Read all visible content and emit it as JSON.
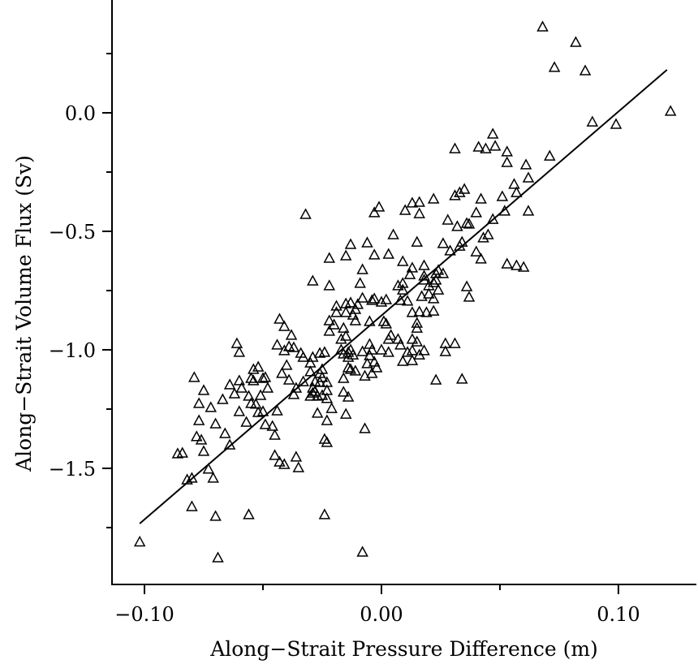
{
  "chart_data": {
    "type": "scatter",
    "title": "",
    "xlabel": "Along−Strait Pressure Difference (m)",
    "ylabel": "Along−Strait Volume Flux (Sv)",
    "xlim": [
      -0.1137,
      0.1329
    ],
    "ylim": [
      -1.99,
      0.476
    ],
    "grid": false,
    "legend": "none",
    "marker": "open-triangle",
    "x_ticks": [
      {
        "value": -0.1,
        "label": "−0.10"
      },
      {
        "value": 0.0,
        "label": "0.00"
      },
      {
        "value": 0.1,
        "label": "0.10"
      }
    ],
    "x_minor_ticks": [
      -0.05,
      0.05
    ],
    "y_ticks": [
      {
        "value": 0.0,
        "label": "0.0"
      },
      {
        "value": -0.5,
        "label": "−0.5"
      },
      {
        "value": -1.0,
        "label": "−1.0"
      },
      {
        "value": -1.5,
        "label": "−1.5"
      }
    ],
    "y_minor_ticks": [
      0.25,
      -0.25,
      -0.75,
      -1.25,
      -1.75
    ],
    "fit_line": {
      "x": [
        -0.102,
        0.1205
      ],
      "y": [
        -1.733,
        0.1815
      ]
    },
    "points": [
      [
        0.068,
        0.363
      ],
      [
        0.082,
        0.298
      ],
      [
        0.073,
        0.192
      ],
      [
        0.086,
        0.178
      ],
      [
        0.122,
        0.007
      ],
      [
        0.089,
        -0.038
      ],
      [
        0.099,
        -0.048
      ],
      [
        0.041,
        -0.144
      ],
      [
        0.031,
        -0.151
      ],
      [
        0.047,
        -0.089
      ],
      [
        0.048,
        -0.14
      ],
      [
        0.044,
        -0.151
      ],
      [
        0.053,
        -0.164
      ],
      [
        0.061,
        -0.219
      ],
      [
        0.053,
        -0.209
      ],
      [
        0.071,
        -0.182
      ],
      [
        0.062,
        -0.274
      ],
      [
        0.057,
        -0.336
      ],
      [
        0.056,
        -0.301
      ],
      [
        0.035,
        -0.322
      ],
      [
        0.033,
        -0.336
      ],
      [
        0.031,
        -0.349
      ],
      [
        0.022,
        -0.363
      ],
      [
        0.032,
        -0.479
      ],
      [
        0.036,
        -0.466
      ],
      [
        0.042,
        -0.363
      ],
      [
        0.051,
        -0.353
      ],
      [
        0.04,
        -0.421
      ],
      [
        0.047,
        -0.449
      ],
      [
        0.052,
        -0.414
      ],
      [
        0.062,
        -0.414
      ],
      [
        0.034,
        -0.545
      ],
      [
        0.037,
        -0.469
      ],
      [
        0.045,
        -0.514
      ],
      [
        0.043,
        -0.527
      ],
      [
        0.033,
        -0.562
      ],
      [
        0.026,
        -0.551
      ],
      [
        0.029,
        -0.582
      ],
      [
        0.04,
        -0.586
      ],
      [
        0.042,
        -0.616
      ],
      [
        0.053,
        -0.637
      ],
      [
        0.057,
        -0.644
      ],
      [
        0.06,
        -0.651
      ],
      [
        -0.001,
        -0.397
      ],
      [
        -0.003,
        -0.421
      ],
      [
        0.01,
        -0.411
      ],
      [
        0.013,
        -0.38
      ],
      [
        0.016,
        -0.377
      ],
      [
        0.016,
        -0.425
      ],
      [
        -0.032,
        -0.428
      ],
      [
        0.028,
        -0.452
      ],
      [
        0.005,
        -0.514
      ],
      [
        0.015,
        -0.545
      ],
      [
        -0.006,
        -0.548
      ],
      [
        -0.013,
        -0.555
      ],
      [
        0.003,
        -0.596
      ],
      [
        -0.003,
        -0.599
      ],
      [
        -0.022,
        -0.613
      ],
      [
        -0.015,
        -0.603
      ],
      [
        0.009,
        -0.627
      ],
      [
        -0.008,
        -0.661
      ],
      [
        -0.029,
        -0.709
      ],
      [
        -0.022,
        -0.729
      ],
      [
        -0.009,
        -0.719
      ],
      [
        0.018,
        -0.644
      ],
      [
        0.024,
        -0.664
      ],
      [
        0.023,
        -0.678
      ],
      [
        0.023,
        -0.705
      ],
      [
        0.02,
        -0.729
      ],
      [
        0.026,
        -0.678
      ],
      [
        0.013,
        -0.654
      ],
      [
        0.012,
        -0.682
      ],
      [
        0.018,
        -0.688
      ],
      [
        0.018,
        -0.705
      ],
      [
        0.009,
        -0.719
      ],
      [
        0.009,
        -0.747
      ],
      [
        0.007,
        -0.729
      ],
      [
        0.008,
        -0.791
      ],
      [
        0.011,
        -0.794
      ],
      [
        0.017,
        -0.774
      ],
      [
        0.02,
        -0.764
      ],
      [
        0.022,
        -0.716
      ],
      [
        0.024,
        -0.747
      ],
      [
        0.036,
        -0.733
      ],
      [
        0.037,
        -0.777
      ],
      [
        0.022,
        -0.784
      ],
      [
        0.022,
        -0.836
      ],
      [
        0.016,
        -0.839
      ],
      [
        0.015,
        -0.887
      ],
      [
        0.013,
        -0.842
      ],
      [
        0.015,
        -0.908
      ],
      [
        0.019,
        -0.842
      ],
      [
        0.002,
        -0.788
      ],
      [
        0.0,
        -0.798
      ],
      [
        -0.003,
        -0.784
      ],
      [
        -0.008,
        -0.781
      ],
      [
        -0.01,
        -0.808
      ],
      [
        -0.004,
        -0.791
      ],
      [
        -0.011,
        -0.829
      ],
      [
        -0.013,
        -0.801
      ],
      [
        -0.015,
        -0.805
      ],
      [
        -0.019,
        -0.815
      ],
      [
        -0.019,
        -0.842
      ],
      [
        -0.012,
        -0.853
      ],
      [
        -0.011,
        -0.877
      ],
      [
        -0.015,
        -0.842
      ],
      [
        -0.016,
        -0.908
      ],
      [
        -0.02,
        -0.894
      ],
      [
        -0.022,
        -0.877
      ],
      [
        -0.017,
        -0.955
      ],
      [
        -0.022,
        -0.921
      ],
      [
        -0.015,
        -0.942
      ],
      [
        -0.005,
        -0.88
      ],
      [
        0.001,
        -0.88
      ],
      [
        0.002,
        -0.89
      ],
      [
        0.004,
        -0.938
      ],
      [
        0.003,
        -0.955
      ],
      [
        0.013,
        -0.955
      ],
      [
        0.007,
        -0.955
      ],
      [
        0.008,
        -0.979
      ],
      [
        0.015,
        -0.966
      ],
      [
        0.018,
        -1.003
      ],
      [
        0.016,
        -1.021
      ],
      [
        0.013,
        -1.045
      ],
      [
        0.009,
        -1.048
      ],
      [
        0.013,
        -1.003
      ],
      [
        0.011,
        -1.01
      ],
      [
        0.0,
        -1.0
      ],
      [
        0.003,
        -1.01
      ],
      [
        -0.004,
        -1.0
      ],
      [
        -0.003,
        -1.051
      ],
      [
        -0.002,
        -1.075
      ],
      [
        -0.008,
        -1.007
      ],
      [
        -0.013,
        -1.0
      ],
      [
        -0.012,
        -1.021
      ],
      [
        -0.014,
        -1.01
      ],
      [
        -0.014,
        -1.031
      ],
      [
        -0.011,
        -1.089
      ],
      [
        -0.014,
        -1.075
      ],
      [
        -0.016,
        -1.12
      ],
      [
        -0.016,
        -1.017
      ],
      [
        -0.017,
        -1.0
      ],
      [
        -0.013,
        -1.082
      ],
      [
        -0.006,
        -1.058
      ],
      [
        -0.007,
        -1.11
      ],
      [
        -0.004,
        -1.099
      ],
      [
        -0.026,
        -1.099
      ],
      [
        -0.028,
        -1.134
      ],
      [
        -0.024,
        -1.01
      ],
      [
        -0.025,
        -1.116
      ],
      [
        -0.023,
        -1.137
      ],
      [
        -0.034,
        -1.014
      ],
      [
        -0.037,
        -0.99
      ],
      [
        -0.039,
        -0.986
      ],
      [
        -0.041,
        -0.901
      ],
      [
        -0.043,
        -0.87
      ],
      [
        -0.038,
        -0.938
      ],
      [
        -0.03,
        -1.055
      ],
      [
        -0.03,
        -1.092
      ],
      [
        -0.029,
        -1.031
      ],
      [
        -0.026,
        -1.014
      ],
      [
        -0.025,
        -1.082
      ],
      [
        -0.033,
        -1.134
      ],
      [
        -0.033,
        -1.031
      ],
      [
        -0.029,
        -1.161
      ],
      [
        -0.028,
        -1.175
      ],
      [
        -0.023,
        -1.205
      ],
      [
        -0.023,
        -1.171
      ],
      [
        -0.025,
        -1.192
      ],
      [
        -0.026,
        -1.137
      ],
      [
        -0.021,
        -1.247
      ],
      [
        -0.014,
        -1.199
      ],
      [
        -0.016,
        -1.178
      ],
      [
        -0.015,
        -1.271
      ],
      [
        -0.007,
        -1.332
      ],
      [
        -0.023,
        -1.298
      ],
      [
        -0.024,
        -1.377
      ],
      [
        -0.023,
        -1.39
      ],
      [
        -0.029,
        -1.182
      ],
      [
        -0.027,
        -1.267
      ],
      [
        -0.027,
        -1.195
      ],
      [
        -0.03,
        -1.195
      ],
      [
        -0.036,
        -1.161
      ],
      [
        -0.039,
        -1.127
      ],
      [
        -0.041,
        -1.003
      ],
      [
        -0.04,
        -1.065
      ],
      [
        -0.042,
        -1.099
      ],
      [
        -0.044,
        -0.979
      ],
      [
        -0.049,
        -1.116
      ],
      [
        -0.048,
        -1.161
      ],
      [
        -0.05,
        -1.12
      ],
      [
        -0.052,
        -1.072
      ],
      [
        -0.054,
        -1.13
      ],
      [
        -0.051,
        -1.192
      ],
      [
        -0.053,
        -1.229
      ],
      [
        -0.052,
        -1.264
      ],
      [
        -0.045,
        -1.36
      ],
      [
        -0.045,
        -1.445
      ],
      [
        -0.05,
        -1.26
      ],
      [
        -0.049,
        -1.315
      ],
      [
        -0.046,
        -1.322
      ],
      [
        -0.044,
        -1.257
      ],
      [
        -0.057,
        -1.305
      ],
      [
        -0.06,
        -1.26
      ],
      [
        -0.055,
        -1.226
      ],
      [
        -0.056,
        -1.195
      ],
      [
        -0.055,
        -1.12
      ],
      [
        -0.059,
        -1.161
      ],
      [
        -0.06,
        -1.13
      ],
      [
        -0.064,
        -1.147
      ],
      [
        -0.062,
        -1.185
      ],
      [
        -0.054,
        -1.082
      ],
      [
        -0.06,
        -1.01
      ],
      [
        -0.061,
        -0.973
      ],
      [
        -0.067,
        -1.209
      ],
      [
        -0.066,
        -1.353
      ],
      [
        -0.07,
        -1.312
      ],
      [
        -0.072,
        -1.243
      ],
      [
        -0.075,
        -1.171
      ],
      [
        -0.077,
        -1.226
      ],
      [
        -0.078,
        -1.366
      ],
      [
        -0.077,
        -1.298
      ],
      [
        -0.076,
        -1.38
      ],
      [
        -0.073,
        -1.503
      ],
      [
        -0.07,
        -1.702
      ],
      [
        -0.079,
        -1.116
      ],
      [
        -0.064,
        -1.401
      ],
      [
        -0.041,
        -1.483
      ],
      [
        -0.036,
        -1.452
      ],
      [
        -0.035,
        -1.497
      ],
      [
        -0.043,
        -1.473
      ],
      [
        -0.084,
        -1.435
      ],
      [
        -0.075,
        -1.428
      ],
      [
        -0.08,
        -1.541
      ],
      [
        -0.082,
        -1.548
      ],
      [
        -0.086,
        -1.438
      ],
      [
        -0.08,
        -1.661
      ],
      [
        -0.102,
        -1.81
      ],
      [
        -0.069,
        -1.877
      ],
      [
        -0.008,
        -1.853
      ],
      [
        -0.024,
        -1.695
      ],
      [
        -0.056,
        -1.695
      ],
      [
        -0.071,
        -1.541
      ],
      [
        -0.037,
        -1.188
      ],
      [
        0.023,
        -1.127
      ],
      [
        0.034,
        -1.123
      ],
      [
        0.027,
        -1.007
      ],
      [
        0.027,
        -0.973
      ],
      [
        0.031,
        -0.973
      ],
      [
        -0.005,
        -1.024
      ],
      [
        -0.005,
        -0.976
      ]
    ]
  }
}
